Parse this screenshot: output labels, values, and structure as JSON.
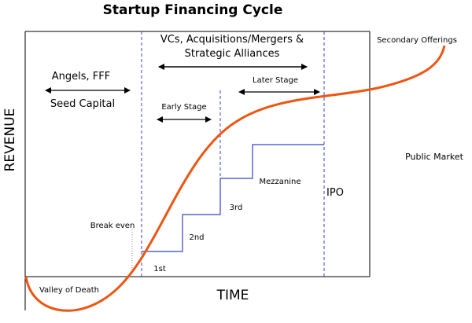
{
  "title": "Startup Financing Cycle",
  "y_axis_label": "REVENUE",
  "x_axis_label": "TIME",
  "labels": {
    "vcs_line1": "VCs, Acquisitions/Mergers &",
    "vcs_line2": "Strategic Alliances",
    "angels": "Angels, FFF",
    "seed": "Seed Capital",
    "later_stage": "Later Stage",
    "early_stage": "Early Stage",
    "secondary": "Secondary Offerings",
    "public_market": "Public Market",
    "ipo": "IPO",
    "mezzanine": "Mezzanine",
    "third": "3rd",
    "second": "2nd",
    "first": "1st",
    "break_even": "Break even",
    "valley": "Valley of Death"
  }
}
